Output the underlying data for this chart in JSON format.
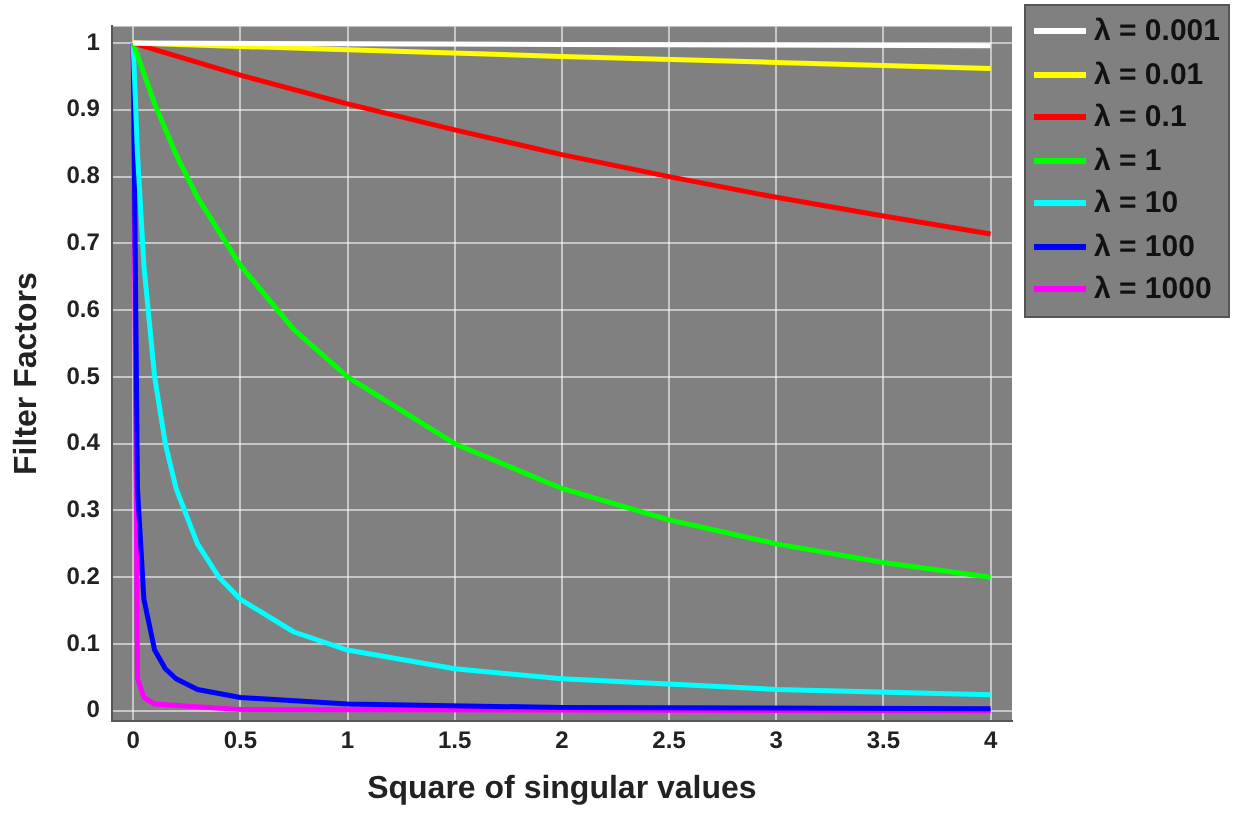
{
  "chart_data": {
    "type": "line",
    "xlabel": "Square of singular values",
    "ylabel": "Filter Factors",
    "xlim": [
      -0.1,
      4.1
    ],
    "ylim": [
      -0.015,
      1.025
    ],
    "xticks": [
      0,
      0.5,
      1,
      1.5,
      2,
      2.5,
      3,
      3.5,
      4
    ],
    "yticks": [
      0,
      0.1,
      0.2,
      0.3,
      0.4,
      0.5,
      0.6,
      0.7,
      0.8,
      0.9,
      1
    ],
    "grid": true,
    "legend": "top right",
    "marker": "none",
    "line_style": "solid",
    "series": [
      {
        "name": "λ = 0.001",
        "color": "#ffffff",
        "x": [
          0,
          2,
          4
        ],
        "values": [
          1,
          0.998,
          0.996
        ]
      },
      {
        "name": "λ = 0.01",
        "color": "#ffff00",
        "x": [
          0,
          1,
          2,
          3,
          4
        ],
        "values": [
          1,
          0.99,
          0.98,
          0.971,
          0.962
        ]
      },
      {
        "name": "λ = 0.1",
        "color": "#ff0000",
        "x": [
          0,
          0.5,
          1,
          1.5,
          2,
          2.5,
          3,
          3.5,
          4
        ],
        "values": [
          1,
          0.952,
          0.909,
          0.87,
          0.833,
          0.8,
          0.769,
          0.741,
          0.714
        ]
      },
      {
        "name": "λ = 1",
        "color": "#00ff00",
        "x": [
          0,
          0.1,
          0.2,
          0.3,
          0.5,
          0.75,
          1,
          1.5,
          2,
          2.5,
          3,
          3.5,
          4
        ],
        "values": [
          1,
          0.909,
          0.833,
          0.769,
          0.667,
          0.571,
          0.5,
          0.4,
          0.333,
          0.286,
          0.25,
          0.222,
          0.2
        ]
      },
      {
        "name": "λ = 10",
        "color": "#00ffff",
        "x": [
          0,
          0.02,
          0.05,
          0.1,
          0.15,
          0.2,
          0.3,
          0.4,
          0.5,
          0.75,
          1,
          1.5,
          2,
          3,
          4
        ],
        "values": [
          1,
          0.833,
          0.667,
          0.5,
          0.4,
          0.333,
          0.25,
          0.2,
          0.167,
          0.118,
          0.091,
          0.063,
          0.048,
          0.032,
          0.024
        ]
      },
      {
        "name": "λ = 100",
        "color": "#0000ff",
        "x": [
          0,
          0.02,
          0.05,
          0.1,
          0.15,
          0.2,
          0.3,
          0.5,
          1,
          2,
          4
        ],
        "values": [
          1,
          0.333,
          0.167,
          0.091,
          0.063,
          0.048,
          0.032,
          0.02,
          0.01,
          0.005,
          0.003
        ]
      },
      {
        "name": "λ = 1000",
        "color": "#ff00ff",
        "x": [
          0,
          0.02,
          0.05,
          0.1,
          0.5,
          4
        ],
        "values": [
          1,
          0.048,
          0.02,
          0.01,
          0.002,
          0
        ]
      }
    ]
  }
}
